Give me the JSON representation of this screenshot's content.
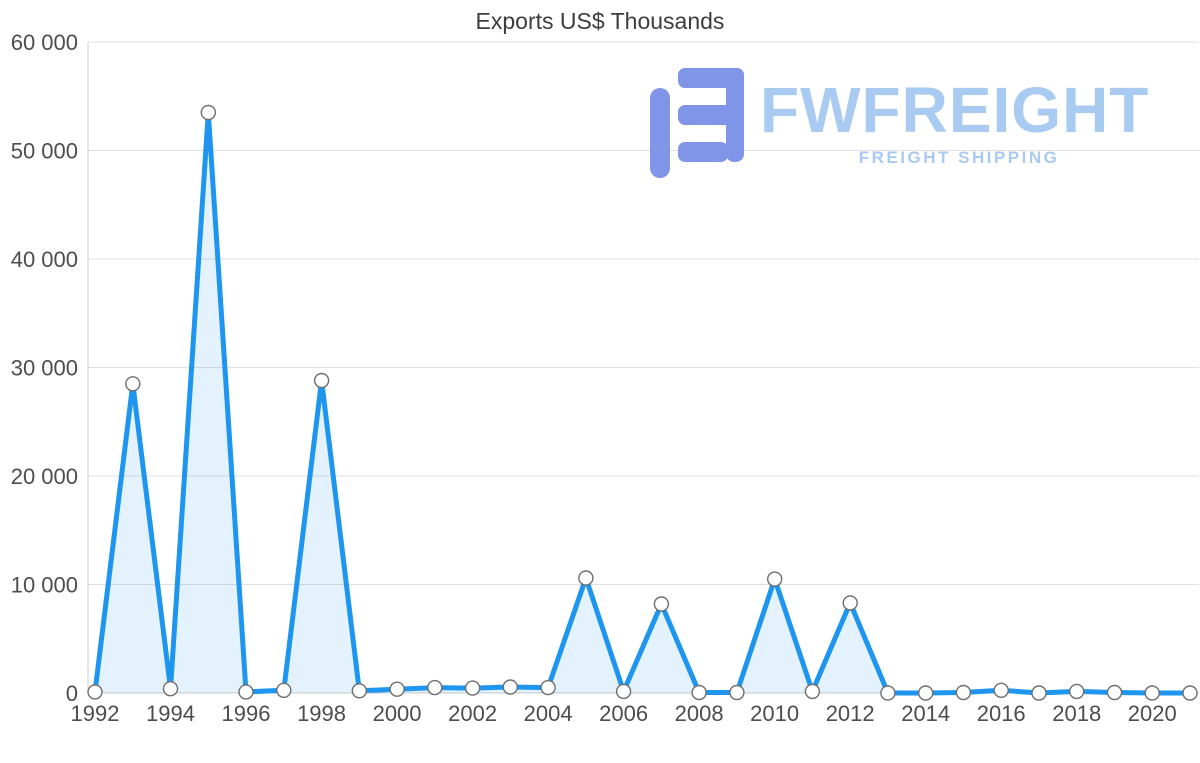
{
  "title": "Exports US$ Thousands",
  "watermark": {
    "brand": "FWFREIGHT",
    "tagline": "FREIGHT SHIPPING"
  },
  "colors": {
    "line": "#1e96f0",
    "area_fill": "rgba(30,150,240,0.12)",
    "marker_fill": "#ffffff",
    "marker_stroke": "#6e6e6e",
    "grid": "#e0e0e0",
    "axis": "#cccccc",
    "tick_text": "#4d4d4d",
    "title_text": "#3d3d3d",
    "logo_icon": "#8195e8",
    "logo_text": "#a9cbf1"
  },
  "chart_data": {
    "type": "area",
    "title": "Exports US$ Thousands",
    "xlabel": "",
    "ylabel": "",
    "x": [
      1992,
      1993,
      1994,
      1995,
      1996,
      1997,
      1998,
      1999,
      2000,
      2001,
      2002,
      2003,
      2004,
      2005,
      2006,
      2007,
      2008,
      2009,
      2010,
      2011,
      2012,
      2013,
      2014,
      2015,
      2016,
      2017,
      2018,
      2019,
      2020,
      2021
    ],
    "values": [
      100,
      28500,
      400,
      53500,
      100,
      250,
      28800,
      200,
      350,
      500,
      450,
      550,
      500,
      10600,
      150,
      8200,
      50,
      50,
      10500,
      150,
      8300,
      0,
      0,
      50,
      250,
      0,
      150,
      50,
      0,
      0
    ],
    "ylim": [
      0,
      60000
    ],
    "y_ticks": [
      0,
      10000,
      20000,
      30000,
      40000,
      50000,
      60000
    ],
    "y_tick_labels": [
      "0",
      "10 000",
      "20 000",
      "30 000",
      "40 000",
      "50 000",
      "60 000"
    ],
    "x_tick_labels": [
      "1992",
      "1994",
      "1996",
      "1998",
      "2000",
      "2002",
      "2004",
      "2006",
      "2008",
      "2010",
      "2012",
      "2014",
      "2016",
      "2018",
      "2020"
    ],
    "grid": "horizontal",
    "legend": "none"
  }
}
